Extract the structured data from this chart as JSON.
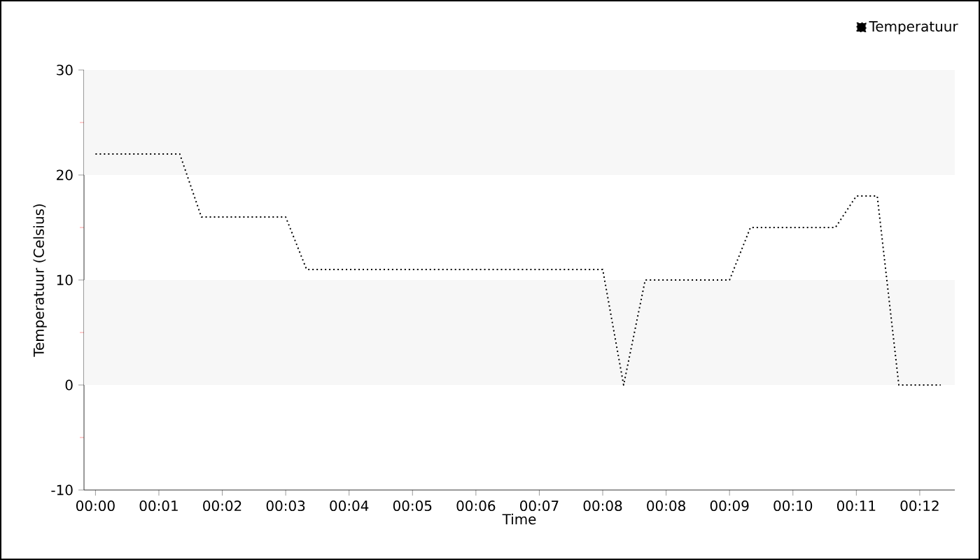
{
  "chart_data": {
    "type": "line",
    "xlabel": "Time",
    "ylabel": "Temperatuur (Celsius)",
    "x": [
      0,
      1.25,
      1.57,
      2.82,
      3.13,
      7.52,
      7.83,
      8.15,
      9.4,
      9.71,
      10.97,
      11.28,
      11.59,
      11.91,
      12.53
    ],
    "series": [
      {
        "name": "Temperatuur",
        "color": "#000000",
        "values": [
          22,
          22,
          16,
          16,
          11,
          11,
          0,
          10,
          10,
          15,
          15,
          18,
          18,
          0,
          0
        ]
      }
    ],
    "xlim": [
      -0.17,
      12.74
    ],
    "ylim": [
      -10,
      30
    ],
    "xticks": [
      {
        "value": 0,
        "label": "00:00"
      },
      {
        "value": 0.94,
        "label": "00:01"
      },
      {
        "value": 1.88,
        "label": "00:02"
      },
      {
        "value": 2.82,
        "label": "00:03"
      },
      {
        "value": 3.76,
        "label": "00:04"
      },
      {
        "value": 4.7,
        "label": "00:05"
      },
      {
        "value": 5.64,
        "label": "00:06"
      },
      {
        "value": 6.58,
        "label": "00:07"
      },
      {
        "value": 7.52,
        "label": "00:08"
      },
      {
        "value": 8.46,
        "label": "00:08"
      },
      {
        "value": 9.4,
        "label": "00:09"
      },
      {
        "value": 10.34,
        "label": "00:10"
      },
      {
        "value": 11.28,
        "label": "00:11"
      },
      {
        "value": 12.22,
        "label": "00:12"
      }
    ],
    "yticks": [
      -10,
      {
        "value": -5,
        "label": null
      },
      0,
      {
        "value": 5,
        "label": null
      },
      10,
      {
        "value": 15,
        "label": null
      },
      20,
      {
        "value": 25,
        "label": null
      },
      30
    ],
    "bands": [
      {
        "axis": "y",
        "from": 0,
        "to": 10,
        "color": "#f7f7f7"
      },
      {
        "axis": "y",
        "from": 20,
        "to": 30,
        "color": "#f7f7f7"
      }
    ],
    "grid": false,
    "legend": "top right",
    "marker": "none",
    "line_style": "dotted"
  }
}
